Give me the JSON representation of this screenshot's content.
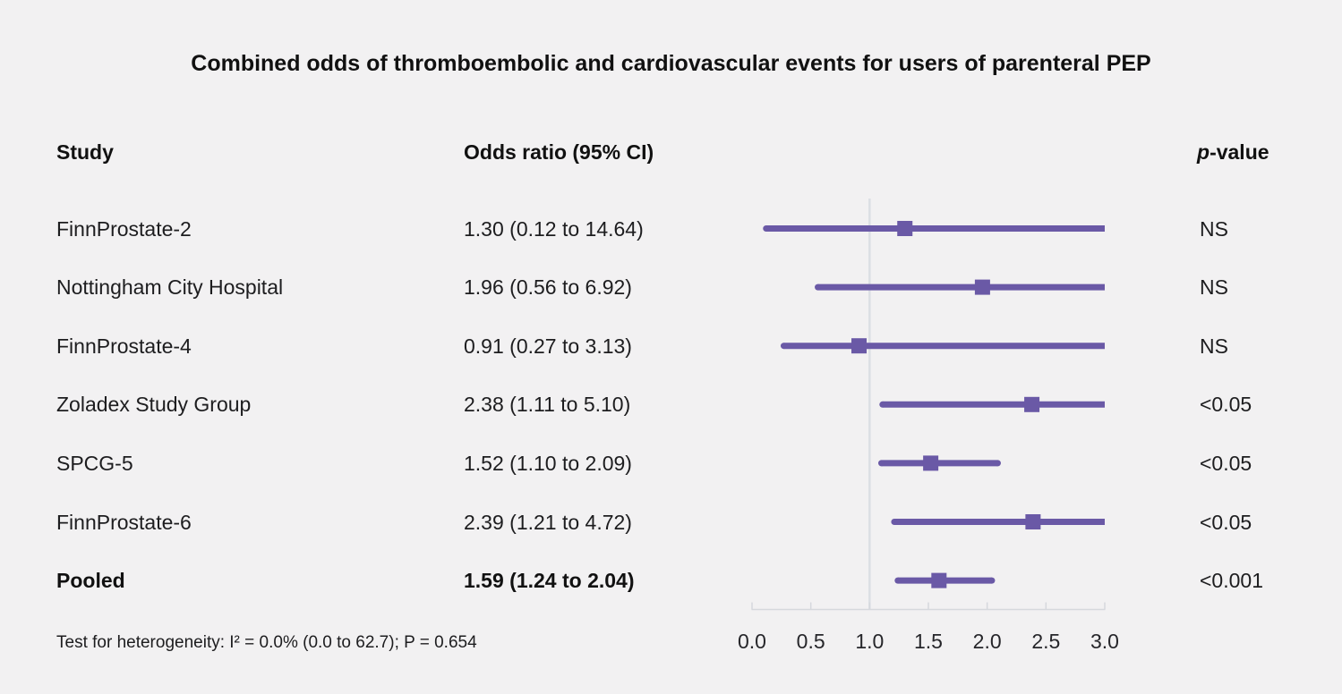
{
  "header": {
    "study_col": "Study",
    "or_col": "Odds ratio (95% CI)",
    "p_col": "p-value"
  },
  "chart_data": {
    "type": "forest",
    "title": "Combined odds of thromboembolic and cardiovascular events for users of parenteral PEP",
    "xlabel": "",
    "xlim": [
      0.0,
      3.0
    ],
    "xticks": [
      {
        "value": 0.0,
        "label": "0.0"
      },
      {
        "value": 0.5,
        "label": "0.5"
      },
      {
        "value": 1.0,
        "label": "1.0"
      },
      {
        "value": 1.5,
        "label": "1.5"
      },
      {
        "value": 2.0,
        "label": "2.0"
      },
      {
        "value": 2.5,
        "label": "2.5"
      },
      {
        "value": 3.0,
        "label": "3.0"
      }
    ],
    "reference_line_value": 1.0,
    "grid": false,
    "legend": "none",
    "studies": [
      {
        "label": "FinnProstate-2",
        "or": 1.3,
        "ci_low": 0.12,
        "ci_high": 14.64,
        "or_text": "1.30 (0.12 to 14.64)",
        "p_value": "NS",
        "pooled": false
      },
      {
        "label": "Nottingham City Hospital",
        "or": 1.96,
        "ci_low": 0.56,
        "ci_high": 6.92,
        "or_text": "1.96 (0.56 to 6.92)",
        "p_value": "NS",
        "pooled": false
      },
      {
        "label": "FinnProstate-4",
        "or": 0.91,
        "ci_low": 0.27,
        "ci_high": 3.13,
        "or_text": "0.91 (0.27 to 3.13)",
        "p_value": "NS",
        "pooled": false
      },
      {
        "label": "Zoladex Study Group",
        "or": 2.38,
        "ci_low": 1.11,
        "ci_high": 5.1,
        "or_text": "2.38 (1.11 to 5.10)",
        "p_value": "<0.05",
        "pooled": false
      },
      {
        "label": "SPCG-5",
        "or": 1.52,
        "ci_low": 1.1,
        "ci_high": 2.09,
        "or_text": "1.52 (1.10 to 2.09)",
        "p_value": "<0.05",
        "pooled": false
      },
      {
        "label": "FinnProstate-6",
        "or": 2.39,
        "ci_low": 1.21,
        "ci_high": 4.72,
        "or_text": "2.39 (1.21 to 4.72)",
        "p_value": "<0.05",
        "pooled": false
      },
      {
        "label": "Pooled",
        "or": 1.59,
        "ci_low": 1.24,
        "ci_high": 2.04,
        "or_text": "1.59 (1.24 to 2.04)",
        "p_value": "<0.001",
        "pooled": true
      }
    ],
    "heterogeneity_note": "Test for heterogeneity: I² = 0.0% (0.0 to 62.7); P = 0.654",
    "colors": {
      "marker": "#6a59a6",
      "ci_line": "#6a59a6",
      "reference_line": "#dbdfe4",
      "axis": "#d6d8dd",
      "background": "#f2f1f2",
      "text": "#1d1d1f"
    }
  }
}
